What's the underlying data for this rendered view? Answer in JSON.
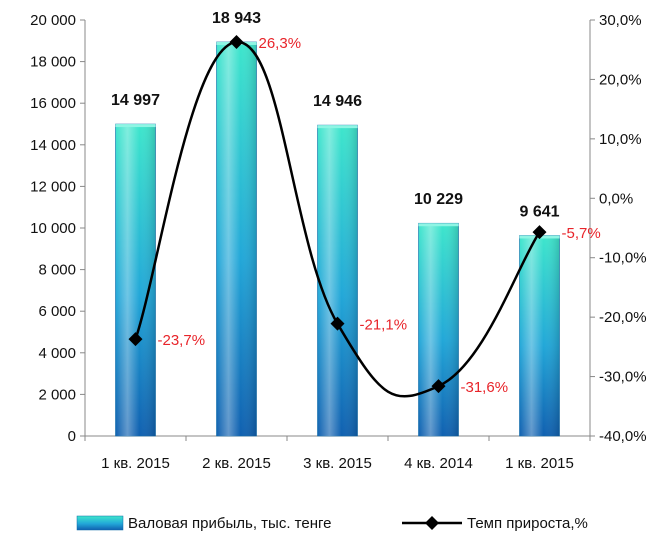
{
  "chart_data": {
    "type": "bar",
    "categories": [
      "1 кв. 2015",
      "2 кв. 2015",
      "3 кв. 2015",
      "4 кв. 2014",
      "1 кв. 2015"
    ],
    "series": [
      {
        "name": "Валовая прибыль, тыс. тенге",
        "type": "bar",
        "axis": "left",
        "values": [
          14997,
          18943,
          14946,
          10229,
          9641
        ],
        "value_labels": [
          "14 997",
          "18 943",
          "14 946",
          "10 229",
          "9 641"
        ],
        "color": "#1e8fc8"
      },
      {
        "name": "Темп прироста,%",
        "type": "line",
        "axis": "right",
        "values": [
          -23.7,
          26.3,
          -21.1,
          -31.6,
          -5.7
        ],
        "value_labels": [
          "-23,7%",
          "26,3%",
          "-21,1%",
          "-31,6%",
          "-5,7%"
        ],
        "color": "#000000",
        "label_color": "#e8242a"
      }
    ],
    "y_left": {
      "lim": [
        0,
        20000
      ],
      "ticks": [
        0,
        2000,
        4000,
        6000,
        8000,
        10000,
        12000,
        14000,
        16000,
        18000,
        20000
      ],
      "tick_labels": [
        "0",
        "2 000",
        "4 000",
        "6 000",
        "8 000",
        "10 000",
        "12 000",
        "14 000",
        "16 000",
        "18 000",
        "20 000"
      ]
    },
    "y_right": {
      "lim": [
        -40,
        30
      ],
      "ticks": [
        -40,
        -30,
        -20,
        -10,
        0,
        10,
        20,
        30
      ],
      "tick_labels": [
        "-40,0%",
        "-30,0%",
        "-20,0%",
        "-10,0%",
        "0,0%",
        "10,0%",
        "20,0%",
        "30,0%"
      ]
    },
    "grid": false,
    "legend": "bottom",
    "smooth_line": true
  }
}
